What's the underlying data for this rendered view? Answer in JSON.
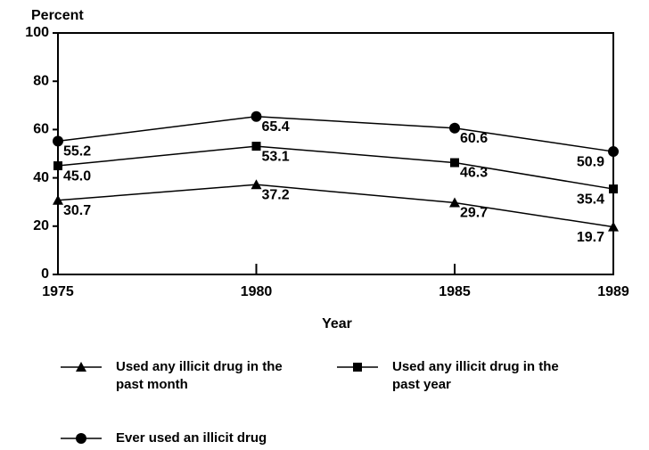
{
  "chart_data": {
    "type": "line",
    "ylabel": "Percent",
    "xlabel": "Year",
    "x": [
      1975,
      1980,
      1985,
      1989
    ],
    "xlim": [
      1975,
      1989
    ],
    "xticks": [
      1975,
      1980,
      1985,
      1989
    ],
    "ylim": [
      0,
      100
    ],
    "yticks": [
      0,
      20,
      40,
      60,
      80,
      100
    ],
    "series": [
      {
        "name": "Used any illicit drug in the past month",
        "color": "#000000",
        "marker": "triangle",
        "values": [
          30.7,
          37.2,
          29.7,
          19.7
        ],
        "value_labels": [
          "30.7",
          "37.2",
          "29.7",
          "19.7"
        ]
      },
      {
        "name": "Used any illicit drug in the past year",
        "color": "#000000",
        "marker": "square",
        "values": [
          45.0,
          53.1,
          46.3,
          35.4
        ],
        "value_labels": [
          "45.0",
          "53.1",
          "46.3",
          "35.4"
        ]
      },
      {
        "name": "Ever used an illicit drug",
        "color": "#000000",
        "marker": "circle",
        "values": [
          55.2,
          65.4,
          60.6,
          50.9
        ],
        "value_labels": [
          "55.2",
          "65.4",
          "60.6",
          "50.9"
        ]
      }
    ]
  }
}
